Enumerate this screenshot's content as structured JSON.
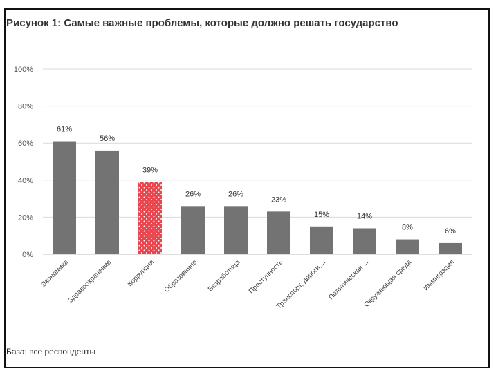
{
  "chart_data": {
    "type": "bar",
    "title": "Рисунок 1: Самые важные проблемы, которые должно решать государство",
    "xlabel": "",
    "ylabel": "",
    "ylim": [
      0,
      100
    ],
    "yticks": [
      "0%",
      "20%",
      "40%",
      "60%",
      "80%",
      "100%"
    ],
    "ytick_values": [
      0,
      20,
      40,
      60,
      80,
      100
    ],
    "categories": [
      "Экономика",
      "Здравоохранение",
      "Коррупция",
      "Образование",
      "Безработица",
      "Преступность",
      "Транспорт, дороги,...",
      "Политическая ...",
      "Окружающая среда",
      "Иммиграция"
    ],
    "values": [
      61,
      56,
      39,
      26,
      26,
      23,
      15,
      14,
      8,
      6
    ],
    "data_labels": [
      "61%",
      "56%",
      "39%",
      "26%",
      "26%",
      "23%",
      "15%",
      "14%",
      "8%",
      "6%"
    ],
    "highlight_index": 2,
    "colors": {
      "bar": "#737373",
      "highlight": "#e8474f",
      "grid": "#d9d9d9"
    },
    "footer": "База: все респонденты"
  }
}
